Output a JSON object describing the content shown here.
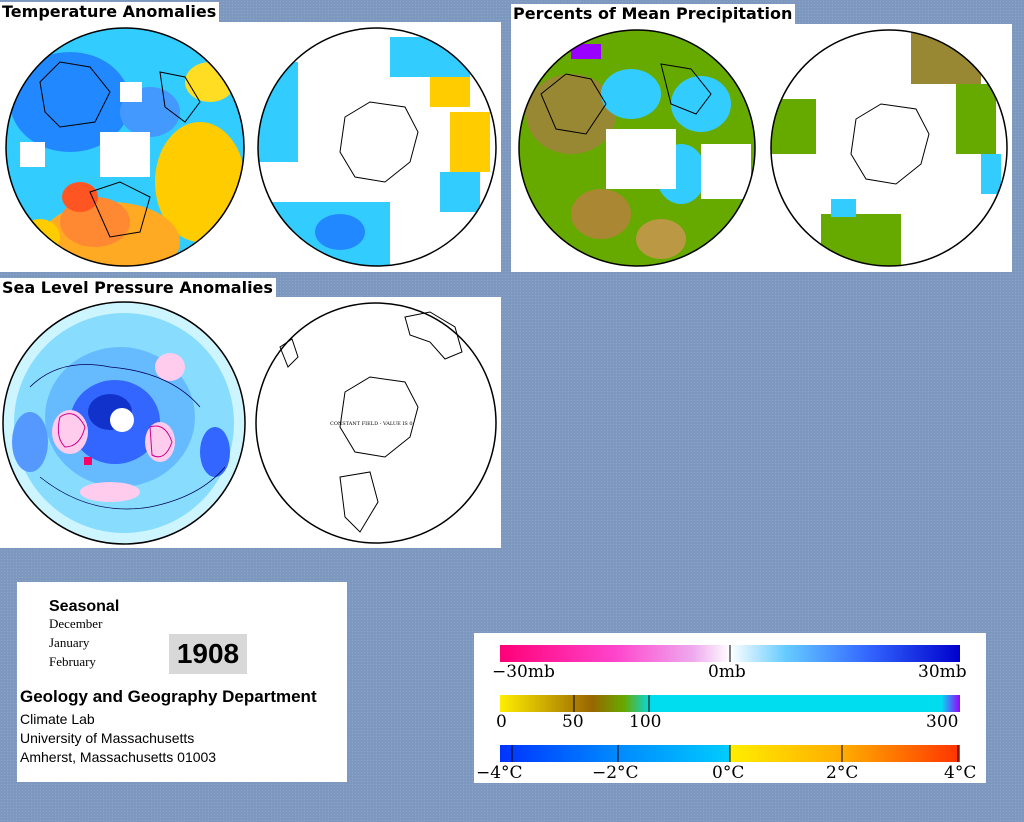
{
  "titles": {
    "temperature": "Temperature Anomalies",
    "precipitation": "Percents of Mean Precipitation",
    "pressure": "Sea Level Pressure Anomalies"
  },
  "map_notes": {
    "pressure_south": "CONSTANT FIELD - VALUE IS 0"
  },
  "info": {
    "season": "Seasonal",
    "months": [
      "December",
      "January",
      "February"
    ],
    "year": "1908",
    "department": "Geology and Geography Department",
    "address": [
      "Climate Lab",
      "University of Massachusetts",
      "Amherst, Massachusetts 01003"
    ]
  },
  "legend": {
    "pressure": {
      "labels": [
        "−30mb",
        "0mb",
        "30mb"
      ],
      "colors": [
        "#ff0077",
        "#ff44cc",
        "#ee88ee",
        "#ffffff",
        "#66ccff",
        "#3366ff",
        "#0000cc"
      ]
    },
    "precip": {
      "labels": [
        "0",
        "50",
        "100",
        "300"
      ],
      "colors": [
        "#ffee00",
        "#ccaa00",
        "#996600",
        "#66aa00",
        "#00ddee",
        "#9900ff"
      ]
    },
    "temp": {
      "labels": [
        "−4°C",
        "−2°C",
        "0°C",
        "2°C",
        "4°C"
      ],
      "colors": [
        "#0033ff",
        "#0088ff",
        "#00ccff",
        "#ffee00",
        "#ffaa00",
        "#ff3300"
      ]
    }
  }
}
